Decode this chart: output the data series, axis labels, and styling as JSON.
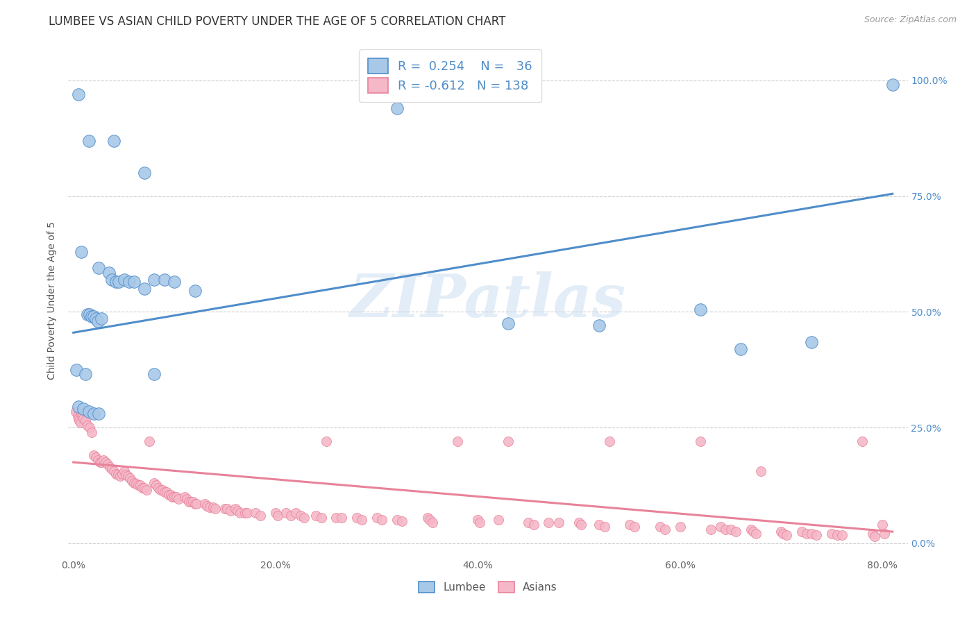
{
  "title": "LUMBEE VS ASIAN CHILD POVERTY UNDER THE AGE OF 5 CORRELATION CHART",
  "source": "Source: ZipAtlas.com",
  "xlabel_ticks": [
    "0.0%",
    "20.0%",
    "40.0%",
    "60.0%",
    "80.0%"
  ],
  "ylabel_right_ticks": [
    "0.0%",
    "25.0%",
    "50.0%",
    "75.0%",
    "100.0%"
  ],
  "xlim": [
    -0.005,
    0.825
  ],
  "ylim": [
    -0.03,
    1.08
  ],
  "ylabel": "Child Poverty Under the Age of 5",
  "lumbee_R": 0.254,
  "lumbee_N": 36,
  "asian_R": -0.612,
  "asian_N": 138,
  "lumbee_scatter": [
    [
      0.005,
      0.97
    ],
    [
      0.015,
      0.87
    ],
    [
      0.04,
      0.87
    ],
    [
      0.07,
      0.8
    ],
    [
      0.32,
      0.94
    ],
    [
      0.008,
      0.63
    ],
    [
      0.025,
      0.595
    ],
    [
      0.035,
      0.585
    ],
    [
      0.038,
      0.57
    ],
    [
      0.042,
      0.565
    ],
    [
      0.045,
      0.565
    ],
    [
      0.05,
      0.57
    ],
    [
      0.055,
      0.565
    ],
    [
      0.06,
      0.565
    ],
    [
      0.07,
      0.55
    ],
    [
      0.08,
      0.57
    ],
    [
      0.09,
      0.57
    ],
    [
      0.1,
      0.565
    ],
    [
      0.12,
      0.545
    ],
    [
      0.014,
      0.495
    ],
    [
      0.016,
      0.495
    ],
    [
      0.018,
      0.49
    ],
    [
      0.02,
      0.49
    ],
    [
      0.022,
      0.485
    ],
    [
      0.024,
      0.48
    ],
    [
      0.028,
      0.485
    ],
    [
      0.003,
      0.375
    ],
    [
      0.012,
      0.365
    ],
    [
      0.08,
      0.365
    ],
    [
      0.005,
      0.295
    ],
    [
      0.01,
      0.29
    ],
    [
      0.015,
      0.285
    ],
    [
      0.02,
      0.28
    ],
    [
      0.025,
      0.28
    ],
    [
      0.43,
      0.475
    ],
    [
      0.52,
      0.47
    ],
    [
      0.62,
      0.505
    ],
    [
      0.66,
      0.42
    ],
    [
      0.73,
      0.435
    ],
    [
      0.81,
      0.99
    ]
  ],
  "asian_scatter": [
    [
      0.002,
      0.285
    ],
    [
      0.004,
      0.275
    ],
    [
      0.005,
      0.27
    ],
    [
      0.006,
      0.265
    ],
    [
      0.007,
      0.26
    ],
    [
      0.008,
      0.28
    ],
    [
      0.009,
      0.275
    ],
    [
      0.01,
      0.27
    ],
    [
      0.012,
      0.265
    ],
    [
      0.014,
      0.255
    ],
    [
      0.016,
      0.25
    ],
    [
      0.018,
      0.24
    ],
    [
      0.02,
      0.19
    ],
    [
      0.022,
      0.185
    ],
    [
      0.024,
      0.18
    ],
    [
      0.026,
      0.175
    ],
    [
      0.028,
      0.175
    ],
    [
      0.03,
      0.18
    ],
    [
      0.032,
      0.175
    ],
    [
      0.034,
      0.17
    ],
    [
      0.036,
      0.165
    ],
    [
      0.038,
      0.16
    ],
    [
      0.04,
      0.155
    ],
    [
      0.042,
      0.15
    ],
    [
      0.044,
      0.148
    ],
    [
      0.046,
      0.145
    ],
    [
      0.048,
      0.15
    ],
    [
      0.05,
      0.155
    ],
    [
      0.052,
      0.148
    ],
    [
      0.054,
      0.145
    ],
    [
      0.056,
      0.14
    ],
    [
      0.058,
      0.135
    ],
    [
      0.06,
      0.13
    ],
    [
      0.062,
      0.128
    ],
    [
      0.064,
      0.125
    ],
    [
      0.066,
      0.125
    ],
    [
      0.068,
      0.12
    ],
    [
      0.07,
      0.12
    ],
    [
      0.072,
      0.115
    ],
    [
      0.075,
      0.22
    ],
    [
      0.08,
      0.13
    ],
    [
      0.082,
      0.125
    ],
    [
      0.084,
      0.12
    ],
    [
      0.086,
      0.115
    ],
    [
      0.088,
      0.115
    ],
    [
      0.09,
      0.11
    ],
    [
      0.092,
      0.11
    ],
    [
      0.094,
      0.105
    ],
    [
      0.096,
      0.105
    ],
    [
      0.098,
      0.1
    ],
    [
      0.1,
      0.1
    ],
    [
      0.102,
      0.1
    ],
    [
      0.104,
      0.095
    ],
    [
      0.11,
      0.1
    ],
    [
      0.112,
      0.095
    ],
    [
      0.114,
      0.09
    ],
    [
      0.116,
      0.09
    ],
    [
      0.118,
      0.09
    ],
    [
      0.12,
      0.085
    ],
    [
      0.122,
      0.085
    ],
    [
      0.13,
      0.085
    ],
    [
      0.132,
      0.08
    ],
    [
      0.135,
      0.078
    ],
    [
      0.138,
      0.078
    ],
    [
      0.14,
      0.075
    ],
    [
      0.15,
      0.075
    ],
    [
      0.152,
      0.075
    ],
    [
      0.155,
      0.07
    ],
    [
      0.16,
      0.075
    ],
    [
      0.162,
      0.07
    ],
    [
      0.165,
      0.065
    ],
    [
      0.17,
      0.065
    ],
    [
      0.172,
      0.065
    ],
    [
      0.18,
      0.065
    ],
    [
      0.185,
      0.06
    ],
    [
      0.2,
      0.065
    ],
    [
      0.202,
      0.06
    ],
    [
      0.21,
      0.065
    ],
    [
      0.215,
      0.06
    ],
    [
      0.22,
      0.065
    ],
    [
      0.225,
      0.06
    ],
    [
      0.228,
      0.055
    ],
    [
      0.24,
      0.06
    ],
    [
      0.245,
      0.055
    ],
    [
      0.25,
      0.22
    ],
    [
      0.26,
      0.055
    ],
    [
      0.265,
      0.055
    ],
    [
      0.28,
      0.055
    ],
    [
      0.285,
      0.05
    ],
    [
      0.3,
      0.055
    ],
    [
      0.305,
      0.05
    ],
    [
      0.32,
      0.05
    ],
    [
      0.325,
      0.048
    ],
    [
      0.35,
      0.055
    ],
    [
      0.352,
      0.05
    ],
    [
      0.355,
      0.045
    ],
    [
      0.38,
      0.22
    ],
    [
      0.4,
      0.05
    ],
    [
      0.402,
      0.045
    ],
    [
      0.42,
      0.05
    ],
    [
      0.43,
      0.22
    ],
    [
      0.45,
      0.045
    ],
    [
      0.455,
      0.04
    ],
    [
      0.47,
      0.045
    ],
    [
      0.48,
      0.045
    ],
    [
      0.5,
      0.045
    ],
    [
      0.502,
      0.04
    ],
    [
      0.52,
      0.04
    ],
    [
      0.525,
      0.035
    ],
    [
      0.53,
      0.22
    ],
    [
      0.55,
      0.04
    ],
    [
      0.555,
      0.035
    ],
    [
      0.58,
      0.035
    ],
    [
      0.585,
      0.03
    ],
    [
      0.6,
      0.035
    ],
    [
      0.62,
      0.22
    ],
    [
      0.63,
      0.03
    ],
    [
      0.64,
      0.035
    ],
    [
      0.645,
      0.03
    ],
    [
      0.65,
      0.03
    ],
    [
      0.655,
      0.025
    ],
    [
      0.67,
      0.03
    ],
    [
      0.672,
      0.025
    ],
    [
      0.675,
      0.02
    ],
    [
      0.68,
      0.155
    ],
    [
      0.7,
      0.025
    ],
    [
      0.702,
      0.02
    ],
    [
      0.705,
      0.018
    ],
    [
      0.72,
      0.025
    ],
    [
      0.725,
      0.02
    ],
    [
      0.73,
      0.02
    ],
    [
      0.735,
      0.018
    ],
    [
      0.75,
      0.02
    ],
    [
      0.755,
      0.018
    ],
    [
      0.76,
      0.018
    ],
    [
      0.78,
      0.22
    ],
    [
      0.79,
      0.02
    ],
    [
      0.792,
      0.015
    ],
    [
      0.8,
      0.04
    ],
    [
      0.802,
      0.02
    ]
  ],
  "lumbee_line": {
    "x": [
      0.0,
      0.81
    ],
    "y": [
      0.455,
      0.755
    ]
  },
  "asian_line": {
    "x": [
      0.0,
      0.81
    ],
    "y": [
      0.175,
      0.025
    ]
  },
  "lumbee_color": "#4f8dc9",
  "asian_color": "#e8829a",
  "lumbee_fill": "#a8c8e8",
  "asian_fill": "#f5b8c8",
  "watermark_text": "ZIPatlas",
  "grid_color": "#cccccc",
  "background_color": "#ffffff",
  "title_fontsize": 12,
  "axis_label_fontsize": 10,
  "tick_fontsize": 10,
  "source_fontsize": 9,
  "legend_fontsize": 13
}
